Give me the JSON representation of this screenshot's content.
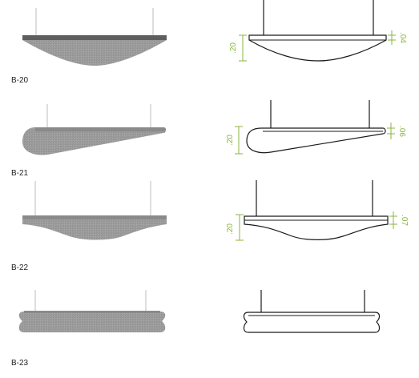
{
  "colors": {
    "felt_fill": "#9a9a9a",
    "felt_dark": "#555555",
    "felt_light": "#b8b8b8",
    "cable": "#c8c8c8",
    "outline": "#1a1a1a",
    "dimension": "#8ab43c",
    "label": "#222222"
  },
  "models": [
    {
      "id": "B-20",
      "label": "B-20",
      "total_height": ".20",
      "cap_height": ".04"
    },
    {
      "id": "B-21",
      "label": "B-21",
      "total_height": ".20",
      "cap_height": ".06"
    },
    {
      "id": "B-22",
      "label": "B-22",
      "total_height": ".20",
      "cap_height": ".07"
    },
    {
      "id": "B-23",
      "label": "B-23"
    }
  ]
}
